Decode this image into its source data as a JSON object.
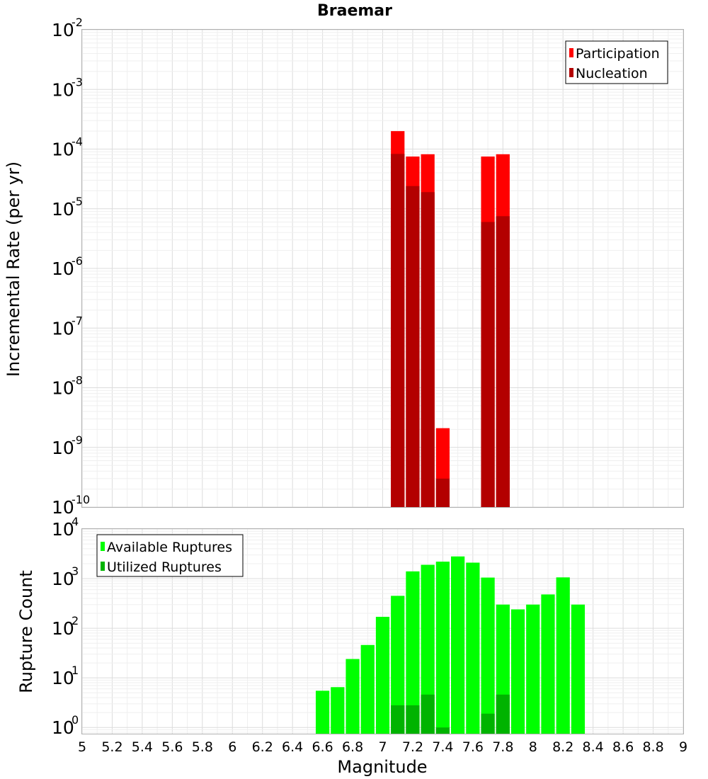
{
  "chart_data": [
    {
      "type": "bar",
      "title": "Braemar",
      "xlabel": "",
      "ylabel": "Incremental Rate (per yr)",
      "xlim": [
        5,
        9
      ],
      "ylim": [
        1e-10,
        0.01
      ],
      "yscale": "log",
      "bin_width": 0.1,
      "legend_position": "top-right",
      "grid": true,
      "x": [
        7.1,
        7.2,
        7.3,
        7.4,
        7.5,
        7.6,
        7.7,
        7.8
      ],
      "series": [
        {
          "name": "Participation",
          "color": "#ff0000",
          "values": [
            0.0002,
            7.5e-05,
            8.2e-05,
            2.1e-09,
            null,
            null,
            7.5e-05,
            8.2e-05
          ]
        },
        {
          "name": "Nucleation",
          "color": "#b30000",
          "values": [
            8.3e-05,
            2.4e-05,
            1.9e-05,
            3e-10,
            null,
            null,
            6e-06,
            7.5e-06
          ]
        }
      ],
      "ytick_labels": [
        {
          "base": "10",
          "exp": "-10"
        },
        {
          "base": "10",
          "exp": "-9"
        },
        {
          "base": "10",
          "exp": "-8"
        },
        {
          "base": "10",
          "exp": "-7"
        },
        {
          "base": "10",
          "exp": "-6"
        },
        {
          "base": "10",
          "exp": "-5"
        },
        {
          "base": "10",
          "exp": "-4"
        },
        {
          "base": "10",
          "exp": "-3"
        },
        {
          "base": "10",
          "exp": "-2"
        }
      ]
    },
    {
      "type": "bar",
      "title": "",
      "xlabel": "Magnitude",
      "ylabel": "Rupture Count",
      "xlim": [
        5,
        9
      ],
      "ylim": [
        0.75,
        10000
      ],
      "yscale": "log",
      "bin_width": 0.1,
      "legend_position": "top-left",
      "grid": true,
      "x": [
        6.6,
        6.7,
        6.8,
        6.9,
        7.0,
        7.1,
        7.2,
        7.3,
        7.4,
        7.5,
        7.6,
        7.7,
        7.8,
        7.9,
        8.0,
        8.1,
        8.2,
        8.3
      ],
      "series": [
        {
          "name": "Available Ruptures",
          "color": "#00ff00",
          "values": [
            5.5,
            6.5,
            24,
            46,
            170,
            450,
            1400,
            1900,
            2200,
            2800,
            2100,
            1050,
            300,
            240,
            300,
            480,
            1060,
            300
          ]
        },
        {
          "name": "Utilized Ruptures",
          "color": "#00b300",
          "values": [
            null,
            null,
            null,
            null,
            null,
            2.8,
            2.8,
            4.6,
            1,
            null,
            null,
            1.9,
            4.6,
            null,
            null,
            null,
            null,
            null
          ]
        }
      ],
      "ytick_labels": [
        {
          "base": "10",
          "exp": "0"
        },
        {
          "base": "10",
          "exp": "1"
        },
        {
          "base": "10",
          "exp": "2"
        },
        {
          "base": "10",
          "exp": "3"
        },
        {
          "base": "10",
          "exp": "4"
        }
      ],
      "xtick_labels": [
        "5",
        "5.2",
        "5.4",
        "5.6",
        "5.8",
        "6",
        "6.2",
        "6.4",
        "6.6",
        "6.8",
        "7",
        "7.2",
        "7.4",
        "7.6",
        "7.8",
        "8",
        "8.2",
        "8.4",
        "8.6",
        "8.8",
        "9"
      ]
    }
  ]
}
